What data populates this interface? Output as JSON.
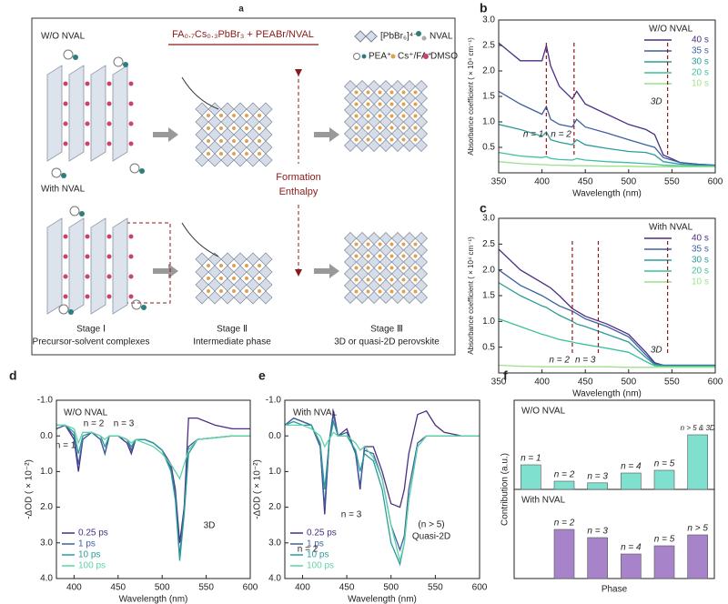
{
  "diagram": {
    "panel": "a",
    "title": "FA₀.₇Cs₀.₃PbBr₃ + PEABr/NVAL",
    "row_labels": [
      "W/O NVAL",
      "With NVAL"
    ],
    "legend": [
      "[PbBr₆]⁴⁻",
      "NVAL",
      "PEA⁺",
      "Cs⁺/FA⁺",
      "DMSO"
    ],
    "center_label": [
      "Formation",
      "Enthalpy"
    ],
    "stages": [
      {
        "name": "Stage Ⅰ",
        "description": "Precursor-solvent complexes"
      },
      {
        "name": "Stage Ⅱ",
        "description": "Intermediate phase"
      },
      {
        "name": "Stage Ⅲ",
        "description": "3D or quasi-2D perovskite"
      }
    ]
  },
  "chart_data": [
    {
      "panel": "b",
      "type": "line",
      "legend_title": "W/O NVAL",
      "legend": "upper right",
      "xlabel": "Wavelength (nm)",
      "ylabel": "Absorbance coefficient ( × 10⁴ cm⁻¹)",
      "x": [
        350,
        375,
        400,
        405,
        410,
        420,
        435,
        440,
        450,
        475,
        500,
        520,
        530,
        540,
        560,
        580,
        600
      ],
      "series": [
        {
          "name": "40 s",
          "color": "#4b2e83",
          "values": [
            2.55,
            2.2,
            2.2,
            2.5,
            2.1,
            1.7,
            1.45,
            1.6,
            1.35,
            1.15,
            0.95,
            0.85,
            0.75,
            0.35,
            0.2,
            0.17,
            0.15
          ]
        },
        {
          "name": "35 s",
          "color": "#3f5fa0",
          "values": [
            1.6,
            1.35,
            1.15,
            1.3,
            1.05,
            0.95,
            0.9,
            1.05,
            0.9,
            0.78,
            0.65,
            0.55,
            0.5,
            0.3,
            0.2,
            0.17,
            0.15
          ]
        },
        {
          "name": "30 s",
          "color": "#2a9d9a",
          "values": [
            0.95,
            0.85,
            0.72,
            0.8,
            0.65,
            0.6,
            0.55,
            0.65,
            0.55,
            0.48,
            0.42,
            0.4,
            0.35,
            0.22,
            0.17,
            0.15,
            0.14
          ]
        },
        {
          "name": "20 s",
          "color": "#3cc1a0",
          "values": [
            0.4,
            0.33,
            0.3,
            0.32,
            0.28,
            0.26,
            0.25,
            0.28,
            0.25,
            0.22,
            0.2,
            0.18,
            0.17,
            0.15,
            0.14,
            0.13,
            0.13
          ]
        },
        {
          "name": "10 s",
          "color": "#9be08a",
          "values": [
            0.22,
            0.18,
            0.16,
            0.16,
            0.15,
            0.15,
            0.14,
            0.14,
            0.14,
            0.13,
            0.13,
            0.12,
            0.12,
            0.12,
            0.12,
            0.12,
            0.12
          ]
        }
      ],
      "markers": [
        {
          "label": "n = 1",
          "x": 405
        },
        {
          "label": "n = 2",
          "x": 437
        },
        {
          "label": "3D",
          "x": 545
        }
      ],
      "xlim": [
        350,
        600
      ],
      "xticks": [
        350,
        400,
        450,
        500,
        550,
        600
      ],
      "ylim": [
        0,
        3
      ],
      "yticks": [
        0.5,
        {
          "value": 1,
          "label": "1.0"
        },
        1.5,
        {
          "value": 2,
          "label": "2.0"
        },
        2.5,
        {
          "value": 3,
          "label": "3.0"
        }
      ]
    },
    {
      "panel": "c",
      "type": "line",
      "legend_title": "With NVAL",
      "legend": "upper right",
      "xlabel": "Wavelength (nm)",
      "ylabel": "Absorbance coefficient ( × 10⁴ cm⁻¹)",
      "x": [
        350,
        375,
        400,
        405,
        410,
        420,
        435,
        440,
        450,
        475,
        500,
        520,
        530,
        540,
        560,
        580,
        600
      ],
      "series": [
        {
          "name": "40 s",
          "color": "#4b2e83",
          "values": [
            2.4,
            2.0,
            1.75,
            1.7,
            1.65,
            1.5,
            1.25,
            1.2,
            1.1,
            0.95,
            0.75,
            0.4,
            0.2,
            0.15,
            0.15,
            0.15,
            0.15
          ]
        },
        {
          "name": "35 s",
          "color": "#3f5fa0",
          "values": [
            2.0,
            1.7,
            1.5,
            1.45,
            1.4,
            1.3,
            1.2,
            1.15,
            1.05,
            0.9,
            0.7,
            0.35,
            0.18,
            0.15,
            0.15,
            0.15,
            0.15
          ]
        },
        {
          "name": "30 s",
          "color": "#2a9d9a",
          "values": [
            1.75,
            1.5,
            1.3,
            1.27,
            1.22,
            1.12,
            1.0,
            0.95,
            0.9,
            0.75,
            0.6,
            0.3,
            0.16,
            0.14,
            0.14,
            0.14,
            0.14
          ]
        },
        {
          "name": "20 s",
          "color": "#3cc1a0",
          "values": [
            1.05,
            0.9,
            0.75,
            0.73,
            0.7,
            0.65,
            0.6,
            0.58,
            0.55,
            0.48,
            0.4,
            0.22,
            0.14,
            0.13,
            0.13,
            0.13,
            0.13
          ]
        },
        {
          "name": "10 s",
          "color": "#9be08a",
          "values": [
            0.15,
            0.13,
            0.12,
            0.12,
            0.12,
            0.12,
            0.12,
            0.12,
            0.12,
            0.12,
            0.11,
            0.11,
            0.11,
            0.11,
            0.11,
            0.11,
            0.11
          ]
        }
      ],
      "markers": [
        {
          "label": "n = 2",
          "x": 435
        },
        {
          "label": "n = 3",
          "x": 465
        },
        {
          "label": "3D",
          "x": 545
        }
      ],
      "xlim": [
        350,
        600
      ],
      "xticks": [
        350,
        400,
        450,
        500,
        550,
        600
      ],
      "ylim": [
        0,
        3
      ],
      "yticks": [
        0.5,
        {
          "value": 1,
          "label": "1.0"
        },
        1.5,
        {
          "value": 2,
          "label": "2.0"
        },
        2.5,
        {
          "value": 3,
          "label": "3.0"
        }
      ]
    },
    {
      "panel": "d",
      "type": "line",
      "legend": "lower left",
      "xlabel": "Wavelength (nm)",
      "ylabel": "-ΔOD ( × 10⁻²)",
      "annotations": [
        "W/O NVAL",
        "n = 1",
        "n = 2",
        "n = 3",
        "3D"
      ],
      "x": [
        380,
        390,
        400,
        405,
        410,
        420,
        430,
        435,
        440,
        450,
        460,
        465,
        470,
        480,
        490,
        500,
        510,
        515,
        520,
        525,
        530,
        540,
        560,
        580,
        600
      ],
      "series": [
        {
          "name": "0.25 ps",
          "color": "#4b2e83",
          "values": [
            -0.2,
            -0.3,
            0.1,
            1.0,
            0.1,
            -0.1,
            0.1,
            0.5,
            0.0,
            0.0,
            0.2,
            0.5,
            0.1,
            0.1,
            0.2,
            0.4,
            0.8,
            1.5,
            3.0,
            2.0,
            -0.5,
            -0.5,
            -0.3,
            -0.2,
            -0.2
          ]
        },
        {
          "name": "1 ps",
          "color": "#3f5fa0",
          "values": [
            -0.2,
            -0.3,
            0.0,
            0.8,
            0.1,
            -0.1,
            0.1,
            0.5,
            0.0,
            0.0,
            0.1,
            0.4,
            0.1,
            0.1,
            0.2,
            0.4,
            0.9,
            1.6,
            3.4,
            2.0,
            0.3,
            0.1,
            0.05,
            0.0,
            0.0
          ]
        },
        {
          "name": "10 ps",
          "color": "#2a9d9a",
          "values": [
            -0.3,
            -0.3,
            -0.1,
            0.5,
            0.0,
            -0.1,
            0.0,
            0.3,
            0.0,
            0.0,
            0.1,
            0.3,
            0.1,
            0.1,
            0.2,
            0.4,
            1.0,
            1.8,
            3.5,
            2.2,
            0.5,
            0.1,
            0.05,
            0.0,
            0.0
          ]
        },
        {
          "name": "100 ps",
          "color": "#5fd3a6",
          "values": [
            -0.3,
            -0.3,
            -0.2,
            0.2,
            -0.1,
            -0.1,
            0.0,
            0.1,
            0.0,
            0.0,
            0.1,
            0.2,
            0.1,
            0.2,
            0.3,
            0.5,
            0.8,
            1.0,
            1.2,
            0.8,
            0.4,
            0.1,
            0.05,
            0.0,
            0.0
          ]
        }
      ],
      "xlim": [
        380,
        600
      ],
      "xticks": [
        400,
        450,
        500,
        550,
        600
      ],
      "ylim": [
        4,
        -1
      ],
      "yticks": [
        {
          "value": -1,
          "label": "-1.0"
        },
        {
          "value": 0,
          "label": "0.0"
        },
        {
          "value": 1,
          "label": "1.0"
        },
        {
          "value": 2,
          "label": "2.0"
        },
        {
          "value": 3,
          "label": "3.0"
        },
        {
          "value": 4,
          "label": "4.0"
        }
      ]
    },
    {
      "panel": "e",
      "type": "line",
      "legend": "lower left",
      "xlabel": "Wavelength (nm)",
      "ylabel": "-ΔOD ( × 10⁻²)",
      "annotations": [
        "With NVAL",
        "n = 2",
        "n = 3",
        "(n > 5)",
        "Quasi-2D"
      ],
      "x": [
        380,
        390,
        400,
        410,
        420,
        425,
        430,
        435,
        440,
        450,
        460,
        465,
        470,
        480,
        490,
        500,
        510,
        515,
        520,
        530,
        540,
        550,
        560,
        580,
        600
      ],
      "series": [
        {
          "name": "0.25 ps",
          "color": "#4b2e83",
          "values": [
            -0.3,
            -0.5,
            -0.4,
            -0.3,
            0.3,
            2.2,
            0.2,
            -0.7,
            0.0,
            -0.2,
            0.5,
            1.5,
            0.3,
            0.3,
            1.0,
            1.9,
            2.0,
            1.5,
            0.5,
            -0.6,
            -0.7,
            -0.3,
            -0.1,
            0.0,
            0.0
          ]
        },
        {
          "name": "1 ps",
          "color": "#3f5fa0",
          "values": [
            -0.3,
            -0.5,
            -0.4,
            -0.3,
            0.3,
            2.0,
            0.2,
            -0.6,
            0.0,
            -0.1,
            0.5,
            1.4,
            0.4,
            0.5,
            1.2,
            2.5,
            3.2,
            2.8,
            1.5,
            0.2,
            0.0,
            0.0,
            0.0,
            0.0,
            0.0
          ]
        },
        {
          "name": "10 ps",
          "color": "#2a9d9a",
          "values": [
            -0.3,
            -0.4,
            -0.3,
            -0.3,
            0.2,
            1.5,
            0.2,
            -0.4,
            0.0,
            0.0,
            0.4,
            1.0,
            0.5,
            0.7,
            1.5,
            3.0,
            3.6,
            3.0,
            1.8,
            0.3,
            0.0,
            0.0,
            0.0,
            0.0,
            0.0
          ]
        },
        {
          "name": "100 ps",
          "color": "#5fd3a6",
          "values": [
            -0.3,
            -0.3,
            -0.3,
            -0.2,
            0.0,
            0.3,
            0.1,
            -0.1,
            0.0,
            0.0,
            0.2,
            0.4,
            0.3,
            0.6,
            1.2,
            2.5,
            3.5,
            3.0,
            1.8,
            0.3,
            0.0,
            0.0,
            0.0,
            0.0,
            0.0
          ]
        }
      ],
      "xlim": [
        380,
        600
      ],
      "xticks": [
        400,
        450,
        500,
        550,
        600
      ],
      "ylim": [
        4,
        -1
      ],
      "yticks": [
        {
          "value": -1,
          "label": "-1.0"
        },
        {
          "value": 0,
          "label": "0.0"
        },
        {
          "value": 1,
          "label": "1.0"
        },
        {
          "value": 2,
          "label": "2.0"
        },
        {
          "value": 3,
          "label": "3.0"
        },
        {
          "value": 4,
          "label": "4.0"
        }
      ]
    },
    {
      "panel": "f",
      "type": "bar",
      "xlabel": "Phase",
      "ylabel": "Contribution (a.u.)",
      "ylim": [
        0,
        1.2
      ],
      "subplots": [
        {
          "title": "W/O NVAL",
          "color": "#7fe0d0",
          "categories": [
            "n = 1",
            "n = 2",
            "n = 3",
            "n = 4",
            "n = 5",
            "n > 5 & 3D"
          ],
          "values": [
            0.45,
            0.15,
            0.12,
            0.3,
            0.35,
            1.0
          ]
        },
        {
          "title": "With NVAL",
          "color": "#a783c9",
          "categories": [
            "n = 2",
            "n = 3",
            "n = 4",
            "n = 5",
            "n > 5"
          ],
          "values": [
            0.9,
            0.75,
            0.45,
            0.6,
            0.8
          ]
        }
      ]
    }
  ]
}
